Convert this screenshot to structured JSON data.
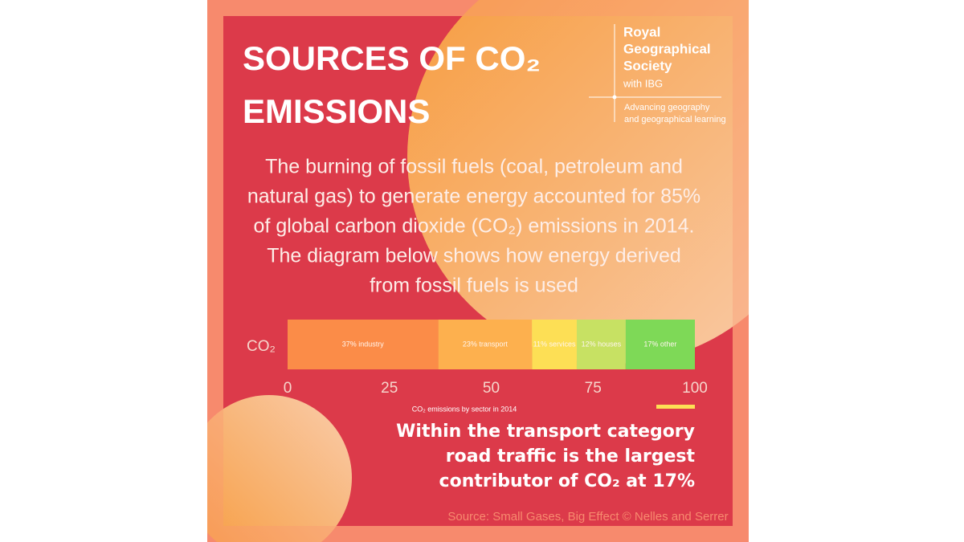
{
  "header": {
    "title_lines": [
      "SOURCES OF CO₂",
      "EMISSIONS"
    ]
  },
  "logo": {
    "name_lines": [
      "Royal",
      "Geographical",
      "Society"
    ],
    "suffix": "with IBG",
    "tagline_lines": [
      "Advancing geography",
      "and geographical learning"
    ]
  },
  "body_text": [
    "The burning of fossil fuels (coal, petroleum and",
    "natural gas) to generate energy accounted for 85%",
    "of global carbon dioxide (CO₂) emissions in 2014.",
    "The diagram below shows how energy derived",
    "from fossil fuels is used"
  ],
  "chart_data": {
    "type": "bar",
    "orientation": "horizontal",
    "stacked": true,
    "categories": [
      "CO₂"
    ],
    "series": [
      {
        "color": "#fb8c48",
        "values": [
          37
        ],
        "value_labels": [
          "37% industry"
        ]
      },
      {
        "color": "#fdb04e",
        "values": [
          23
        ],
        "value_labels": [
          "23% transport"
        ]
      },
      {
        "color": "#fddf55",
        "values": [
          11
        ],
        "value_labels": [
          "11% services"
        ]
      },
      {
        "color": "#c7e163",
        "values": [
          12
        ],
        "value_labels": [
          "12% houses"
        ]
      },
      {
        "color": "#7ed957",
        "values": [
          17
        ],
        "value_labels": [
          "17% other"
        ]
      }
    ],
    "xlim": [
      0,
      100
    ],
    "xticks": [
      0,
      25,
      50,
      75,
      100
    ],
    "xlabel": "CO₂ emissions by sector in 2014"
  },
  "callout": [
    "Within the transport category",
    "road traffic is the largest",
    "contributor of CO₂ at 17%"
  ],
  "source": "Source: Small Gases, Big Effect © Nelles and Serrer"
}
